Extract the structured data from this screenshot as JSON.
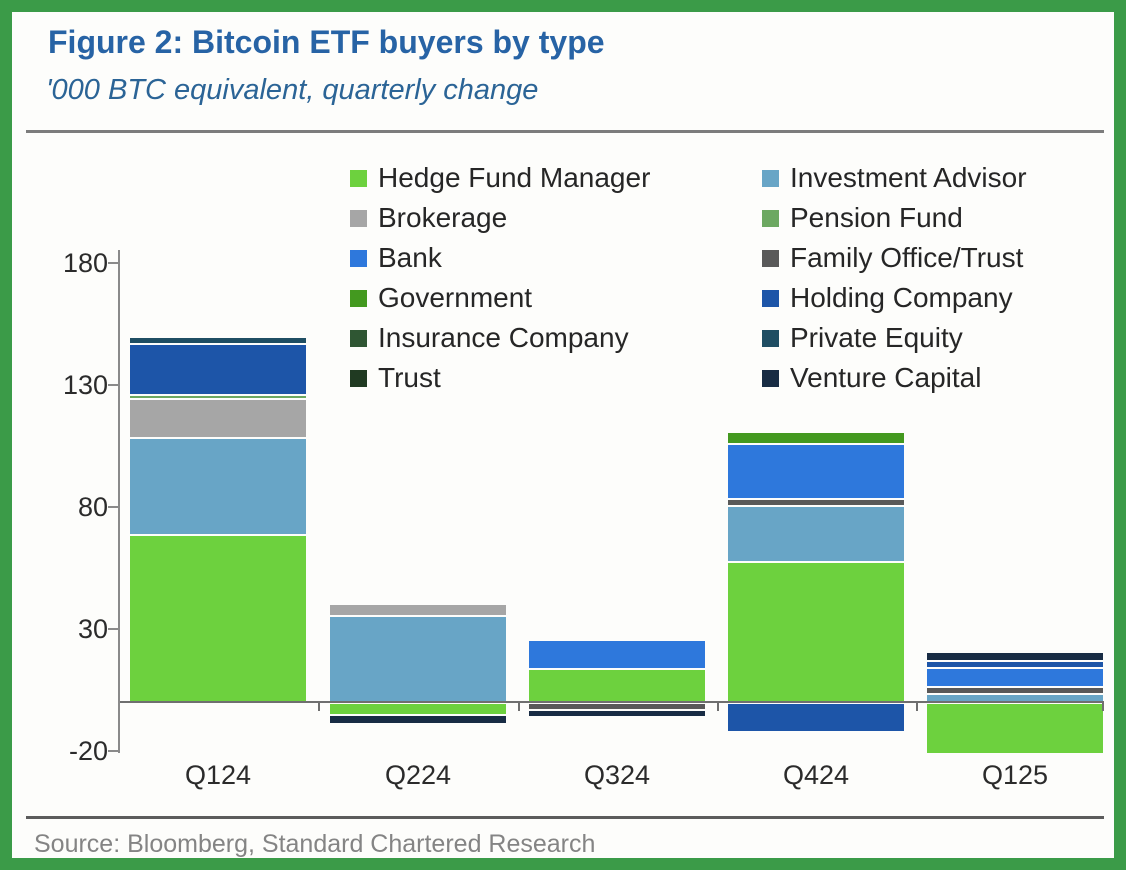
{
  "figure": {
    "title": "Figure 2: Bitcoin ETF buyers by type",
    "subtitle": "'000 BTC equivalent, quarterly change",
    "source": "Source: Bloomberg, Standard Chartered Research"
  },
  "colors": {
    "frame_border": "#3b9b48",
    "title_text": "#2763a5",
    "axis_gray": "#8a8a8a",
    "source_gray": "#848484"
  },
  "chart_data": {
    "type": "bar",
    "stacked": true,
    "title": "Figure 2: Bitcoin ETF buyers by type",
    "subtitle": "'000 BTC equivalent, quarterly change",
    "ylabel": "'000 BTC equivalent, quarterly change",
    "xlabel": "",
    "categories": [
      "Q124",
      "Q224",
      "Q324",
      "Q424",
      "Q125"
    ],
    "series": [
      {
        "name": "Hedge Fund Manager",
        "color": "#6dd13e",
        "values": [
          68,
          -4,
          13,
          57,
          -20
        ]
      },
      {
        "name": "Investment Advisor",
        "color": "#68a5c6",
        "values": [
          39,
          35,
          0,
          22,
          3
        ]
      },
      {
        "name": "Brokerage",
        "color": "#a6a6a6",
        "values": [
          15,
          4,
          0,
          0,
          0
        ]
      },
      {
        "name": "Pension Fund",
        "color": "#6ca861",
        "values": [
          1,
          0,
          0,
          0,
          0
        ]
      },
      {
        "name": "Family Office/Trust",
        "color": "#595959",
        "values": [
          0,
          0,
          -2,
          2,
          2
        ]
      },
      {
        "name": "Bank",
        "color": "#2e78dc",
        "values": [
          0,
          0,
          11,
          22,
          7
        ]
      },
      {
        "name": "Government",
        "color": "#43991f",
        "values": [
          0,
          0,
          0,
          4,
          0
        ]
      },
      {
        "name": "Holding Company",
        "color": "#1d55a8",
        "values": [
          20,
          0,
          0,
          -11,
          2
        ]
      },
      {
        "name": "Insurance Company",
        "color": "#2f5633",
        "values": [
          0,
          0,
          0,
          0,
          0
        ]
      },
      {
        "name": "Private Equity",
        "color": "#1f4e63",
        "values": [
          2,
          0,
          0,
          0,
          0
        ]
      },
      {
        "name": "Trust",
        "color": "#203a22",
        "values": [
          0,
          0,
          0,
          0,
          0
        ]
      },
      {
        "name": "Venture Capital",
        "color": "#182c44",
        "values": [
          0,
          -3,
          -2,
          0,
          3
        ]
      }
    ],
    "yticks": [
      180,
      130,
      80,
      30,
      -20
    ],
    "ylim": [
      -30,
      190
    ],
    "grid": false,
    "legend_position": "top-inside",
    "legend_columns": {
      "left": [
        "Hedge Fund Manager",
        "Brokerage",
        "Bank",
        "Government",
        "Insurance Company",
        "Trust"
      ],
      "right": [
        "Investment Advisor",
        "Pension Fund",
        "Family Office/Trust",
        "Holding Company",
        "Private Equity",
        "Venture Capital"
      ]
    }
  }
}
